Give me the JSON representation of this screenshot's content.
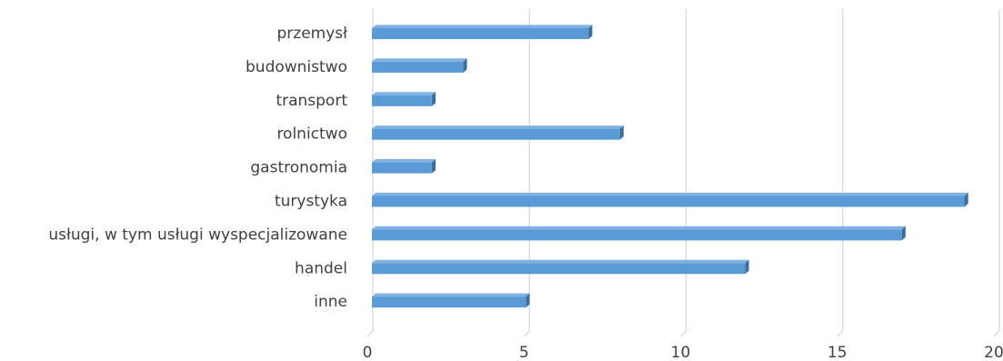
{
  "chart_data": {
    "type": "bar",
    "orientation": "horizontal",
    "style": "3d-clustered-bar",
    "categories": [
      "przemysł",
      "budownistwo",
      "transport",
      "rolnictwo",
      "gastronomia",
      "turystyka",
      "usługi, w tym usługi wyspecjalizowane",
      "handel",
      "inne"
    ],
    "values": [
      7,
      3,
      2,
      8,
      2,
      19,
      17,
      12,
      5
    ],
    "xlim": [
      0,
      20
    ],
    "xticks": [
      0,
      5,
      10,
      15,
      20
    ],
    "grid": true,
    "legend": "none",
    "title": "",
    "xlabel": "",
    "ylabel": ""
  },
  "colors": {
    "bar_front": "#5B9BD5",
    "bar_top": "#7FB2E0",
    "bar_side": "#3A6F9E",
    "grid": "#D9D9D9",
    "text": "#404040"
  }
}
